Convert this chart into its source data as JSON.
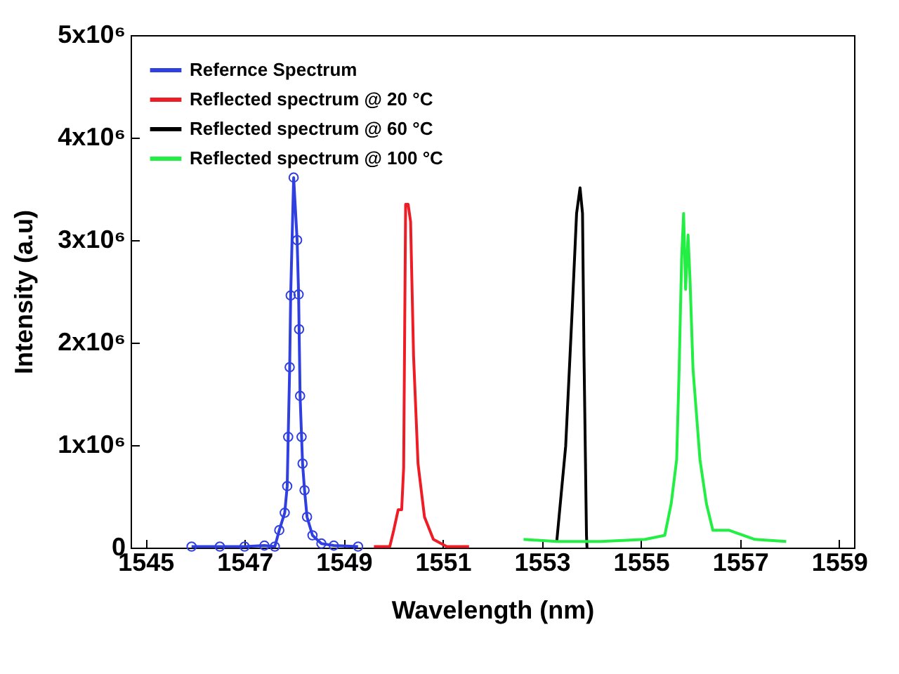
{
  "chart_data": {
    "type": "line",
    "xlabel": "Wavelength (nm)",
    "ylabel": "Intensity (a.u)",
    "xlim": [
      1544.7,
      1559.3
    ],
    "xticks": [
      1545,
      1547,
      1549,
      1551,
      1553,
      1555,
      1557,
      1559
    ],
    "ylim": [
      0,
      5000000
    ],
    "yticks": [
      {
        "value": 0,
        "label": "0"
      },
      {
        "value": 1000000,
        "label": "1x10⁶"
      },
      {
        "value": 2000000,
        "label": "2x10⁶"
      },
      {
        "value": 3000000,
        "label": "3x10⁶"
      },
      {
        "value": 4000000,
        "label": "4x10⁶"
      },
      {
        "value": 5000000,
        "label": "5x10⁶"
      }
    ],
    "grid": false,
    "legend": "top left",
    "line_style": "solid",
    "series": [
      {
        "name": "Refernce Spectrum",
        "color": "#2f3fe0",
        "marker": "circle",
        "x": [
          1545.93,
          1546.5,
          1547.0,
          1547.4,
          1547.61,
          1547.7,
          1547.81,
          1547.86,
          1547.88,
          1547.91,
          1547.93,
          1547.99,
          1548.06,
          1548.09,
          1548.1,
          1548.12,
          1548.15,
          1548.17,
          1548.21,
          1548.26,
          1548.37,
          1548.55,
          1548.8,
          1549.29
        ],
        "values": [
          10000,
          10000,
          10000,
          20000,
          10000,
          170000,
          340000,
          600000,
          1080000,
          1760000,
          2460000,
          3610000,
          3000000,
          2470000,
          2130000,
          1480000,
          1080000,
          820000,
          560000,
          300000,
          120000,
          40000,
          20000,
          10000
        ]
      },
      {
        "name": "Reflected spectrum @ 20 °C",
        "color": "#ee1c25",
        "x": [
          1549.61,
          1549.93,
          1550.01,
          1550.1,
          1550.17,
          1550.21,
          1550.25,
          1550.3,
          1550.35,
          1550.41,
          1550.5,
          1550.63,
          1550.81,
          1551.08,
          1551.53
        ],
        "values": [
          10000,
          10000,
          170000,
          370000,
          370000,
          780000,
          3350000,
          3350000,
          3180000,
          1870000,
          820000,
          300000,
          80000,
          10000,
          10000
        ]
      },
      {
        "name": "Reflected spectrum @ 60 °C",
        "color": "#000000",
        "x": [
          1553.3,
          1553.48,
          1553.61,
          1553.7,
          1553.77,
          1553.82,
          1553.85,
          1553.9,
          1553.91
        ],
        "values": [
          60000,
          990000,
          2300000,
          3260000,
          3510000,
          3260000,
          1870000,
          120000,
          0
        ]
      },
      {
        "name": "Reflected spectrum @ 100 °C",
        "color": "#22ee44",
        "x": [
          1552.63,
          1553.3,
          1554.19,
          1555.08,
          1555.48,
          1555.61,
          1555.72,
          1555.77,
          1555.82,
          1555.86,
          1555.9,
          1555.95,
          1555.99,
          1556.05,
          1556.19,
          1556.32,
          1556.45,
          1556.77,
          1557.3,
          1557.93
        ],
        "values": [
          80000,
          60000,
          60000,
          80000,
          120000,
          430000,
          860000,
          1740000,
          2820000,
          3260000,
          2520000,
          3050000,
          2610000,
          1740000,
          860000,
          430000,
          170000,
          170000,
          80000,
          60000
        ]
      }
    ]
  }
}
